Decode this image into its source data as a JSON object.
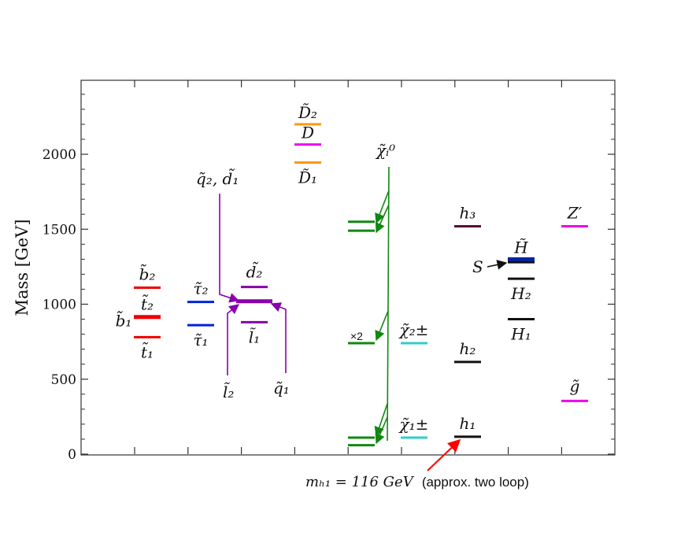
{
  "chart_data": {
    "type": "level-diagram",
    "ylabel": "Mass [GeV]",
    "ylim": [
      0,
      2500
    ],
    "yticks": [
      0,
      500,
      1000,
      1500,
      2000
    ],
    "ytick_labels": [
      "0",
      "500",
      "1000",
      "1500",
      "2000"
    ],
    "levels": [
      {
        "id": "b2",
        "column": 1,
        "mass": 1110,
        "color": "#ee0000",
        "label": "b̃₂",
        "thick": false
      },
      {
        "id": "b1",
        "column": 1,
        "mass": 915,
        "color": "#ee0000",
        "label": "b̃₁",
        "thick": true
      },
      {
        "id": "t2",
        "column": 1,
        "mass": 910,
        "color": "#ee0000",
        "label": "t̃₂",
        "thick": false
      },
      {
        "id": "t1",
        "column": 1,
        "mass": 780,
        "color": "#ee0000",
        "label": "t̃₁",
        "thick": false
      },
      {
        "id": "tau2",
        "column": 2,
        "mass": 1015,
        "color": "#0022dd",
        "label": "τ̃₂",
        "thick": false
      },
      {
        "id": "tau1",
        "column": 2,
        "mass": 860,
        "color": "#0022dd",
        "label": "τ̃₁",
        "thick": false
      },
      {
        "id": "d2",
        "column": 3,
        "mass": 1115,
        "color": "#8800aa",
        "label": "d̃₂",
        "thick": false
      },
      {
        "id": "q2d1",
        "column": 3,
        "mass": 1020,
        "color": "#8800aa",
        "label": "",
        "thick": true
      },
      {
        "id": "l1",
        "column": 3,
        "mass": 880,
        "color": "#8800aa",
        "label": "l̃₁",
        "thick": false
      },
      {
        "id": "D2",
        "column": 4,
        "mass": 2200,
        "color": "#ff9900",
        "label": "D̃₂",
        "thick": false
      },
      {
        "id": "D",
        "column": 4,
        "mass": 2065,
        "color": "#ee00ee",
        "label": "D",
        "thick": false
      },
      {
        "id": "D1",
        "column": 4,
        "mass": 1945,
        "color": "#ff9900",
        "label": "D̃₁",
        "thick": false
      },
      {
        "id": "chi0_a",
        "column": 5,
        "mass": 1550,
        "color": "#118811",
        "label": "",
        "thick": false
      },
      {
        "id": "chi0_b",
        "column": 5,
        "mass": 1490,
        "color": "#118811",
        "label": "",
        "thick": false
      },
      {
        "id": "chi0_c",
        "column": 5,
        "mass": 740,
        "color": "#118811",
        "label": "",
        "thick": false
      },
      {
        "id": "chi0_d",
        "column": 5,
        "mass": 110,
        "color": "#118811",
        "label": "",
        "thick": false
      },
      {
        "id": "chi0_e",
        "column": 5,
        "mass": 60,
        "color": "#118811",
        "label": "",
        "thick": false
      },
      {
        "id": "chipm2",
        "column": 6,
        "mass": 740,
        "color": "#33cccc",
        "label": "χ̃₂±",
        "thick": false
      },
      {
        "id": "chipm1",
        "column": 6,
        "mass": 110,
        "color": "#33cccc",
        "label": "χ̃₁±",
        "thick": false
      },
      {
        "id": "h3",
        "column": 7,
        "mass": 1520,
        "color": "#551133",
        "label": "h₃",
        "thick": false
      },
      {
        "id": "h2",
        "column": 7,
        "mass": 615,
        "color": "#111111",
        "label": "h₂",
        "thick": false
      },
      {
        "id": "h1",
        "column": 7,
        "mass": 116,
        "color": "#111111",
        "label": "h₁",
        "thick": false
      },
      {
        "id": "Htilde",
        "column": 8,
        "mass": 1300,
        "color": "#0022aa",
        "label": "H̃",
        "thick": true
      },
      {
        "id": "S",
        "column": 8,
        "mass": 1280,
        "color": "#111111",
        "label": "",
        "thick": false
      },
      {
        "id": "H2",
        "column": 8,
        "mass": 1170,
        "color": "#111111",
        "label": "H₂",
        "thick": false
      },
      {
        "id": "H1",
        "column": 8,
        "mass": 900,
        "color": "#111111",
        "label": "H₁",
        "thick": false
      },
      {
        "id": "Zprime",
        "column": 9,
        "mass": 1520,
        "color": "#ee00ee",
        "label": "Z′",
        "thick": false
      },
      {
        "id": "gluino",
        "column": 9,
        "mass": 355,
        "color": "#ee00ee",
        "label": "g̃",
        "thick": false
      }
    ],
    "annotations": {
      "q2d1": "q̃₂, d̃₁",
      "l2": "l̃₂",
      "q1": "q̃₁",
      "chi0": "χ̃ᵢ⁰",
      "x2": "×2",
      "S": "S"
    },
    "note": {
      "math": "mₕ₁ = 116 GeV",
      "plain": "(approx. two loop)"
    }
  }
}
